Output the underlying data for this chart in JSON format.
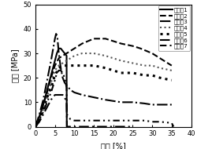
{
  "title": "",
  "xlabel": "应变 [%]",
  "ylabel": "应力 [MPa]",
  "xlim": [
    0,
    40
  ],
  "ylim": [
    0,
    50
  ],
  "xticks": [
    0,
    5,
    10,
    15,
    20,
    25,
    30,
    35,
    40
  ],
  "yticks": [
    0,
    10,
    20,
    30,
    40,
    50
  ],
  "series": [
    {
      "label": "实施例1",
      "linestyle": "solid",
      "linewidth": 1.5,
      "color": "#000000",
      "x": [
        0,
        1,
        2,
        3,
        4,
        5,
        5.5,
        6,
        6.5,
        7,
        7.5,
        8,
        8.05
      ],
      "y": [
        0,
        4,
        9,
        15,
        21,
        27,
        30,
        32,
        32,
        31,
        30,
        29,
        0
      ]
    },
    {
      "label": "实施例2",
      "linestyle": "dashed",
      "linewidth": 1.5,
      "color": "#000000",
      "x": [
        0,
        1,
        2,
        3,
        4,
        5,
        6,
        7,
        8,
        10,
        12,
        15,
        18,
        20,
        22,
        25,
        27,
        30,
        32,
        35
      ],
      "y": [
        0,
        4,
        9,
        14,
        20,
        25,
        28,
        29,
        30,
        32,
        34,
        36,
        36,
        35,
        34,
        33,
        32,
        30,
        28,
        25
      ]
    },
    {
      "label": "实施例3",
      "linestyle": "dashdot",
      "linewidth": 1.5,
      "color": "#000000",
      "x": [
        0,
        1,
        2,
        3,
        4,
        5,
        5.3,
        5.6,
        6,
        6.5,
        7,
        7.5,
        8,
        8.5,
        9,
        10,
        12,
        15,
        18,
        20,
        22,
        25,
        28,
        30,
        32,
        35
      ],
      "y": [
        0,
        5,
        11,
        19,
        27,
        36,
        38,
        37,
        30,
        24,
        20,
        18,
        17,
        16,
        15,
        14,
        13,
        12,
        11,
        10.5,
        10,
        10,
        9.5,
        9,
        9,
        9
      ]
    },
    {
      "label": "实施例4",
      "linestyle": "dotted",
      "linewidth": 1.5,
      "color": "#555555",
      "x": [
        0,
        1,
        2,
        3,
        4,
        5,
        6,
        7,
        8,
        9,
        10,
        12,
        15,
        18,
        20,
        22,
        25,
        28,
        30,
        32,
        35
      ],
      "y": [
        0,
        3,
        7,
        12,
        18,
        23,
        25,
        26,
        27,
        28,
        29,
        30,
        30,
        29,
        28,
        27,
        26,
        25,
        25,
        24,
        23
      ]
    },
    {
      "label": "实施例5",
      "linestyle": "dotted",
      "linewidth": 2.2,
      "color": "#000000",
      "x": [
        0,
        1,
        2,
        3,
        4,
        5,
        6,
        7,
        8,
        9,
        10,
        12,
        15,
        18,
        20,
        22,
        25,
        28,
        30,
        32,
        35
      ],
      "y": [
        0,
        3,
        7,
        12,
        16,
        21,
        24,
        25,
        25,
        25,
        25,
        25,
        25,
        24,
        23,
        22,
        22,
        21,
        21,
        20,
        19
      ]
    },
    {
      "label": "实施例6",
      "linestyle": [
        0,
        [
          6,
          2,
          1,
          2
        ]
      ],
      "linewidth": 1.5,
      "color": "#000000",
      "x": [
        0,
        1,
        2,
        3,
        4,
        5,
        6,
        7,
        7.5,
        8,
        8.1,
        8.5,
        10,
        12,
        15,
        18,
        20,
        22,
        25
      ],
      "y": [
        0,
        2,
        5,
        8,
        11,
        13,
        13,
        13,
        12,
        10,
        0,
        0,
        0,
        0,
        0,
        0,
        0,
        0,
        0
      ]
    },
    {
      "label": "实施例7",
      "linestyle": [
        0,
        [
          4,
          2,
          1,
          2,
          1,
          2
        ]
      ],
      "linewidth": 1.5,
      "color": "#000000",
      "x": [
        0,
        1,
        2,
        3,
        4,
        5,
        5.5,
        6,
        6.5,
        7,
        7.5,
        8,
        8.1,
        9,
        10,
        12,
        15,
        18,
        20,
        22,
        25,
        28,
        30,
        32,
        35,
        35.5
      ],
      "y": [
        0,
        3,
        6,
        10,
        14,
        19,
        22,
        23,
        23,
        22,
        20,
        16,
        5,
        3,
        2.5,
        2.5,
        2.5,
        2.5,
        2.5,
        2.5,
        2.5,
        2.5,
        2,
        2,
        1.5,
        0
      ]
    }
  ],
  "legend_fontsize": 5.2,
  "axis_fontsize": 7,
  "tick_fontsize": 6,
  "background_color": "#ffffff"
}
